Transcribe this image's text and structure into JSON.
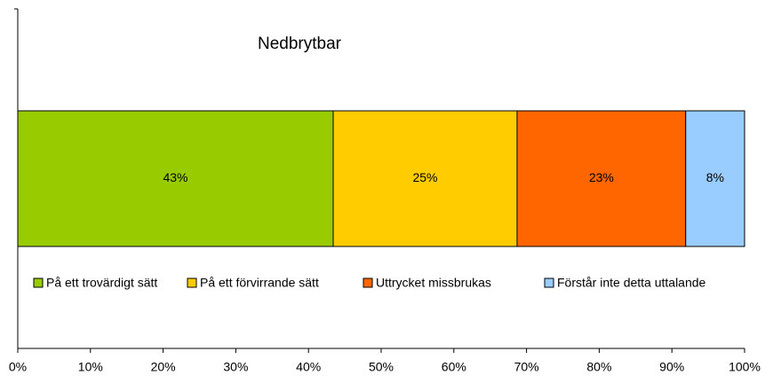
{
  "chart_data": {
    "type": "bar",
    "orientation": "horizontal",
    "stacked": true,
    "title": "Nedbrytbar",
    "series": [
      {
        "name": "På ett trovärdigt sätt",
        "color": "#99cc00",
        "values": [
          43.4
        ],
        "value_labels": [
          "43%"
        ]
      },
      {
        "name": "På ett förvirrande sätt",
        "color": "#ffcc00",
        "values": [
          25.3
        ],
        "value_labels": [
          "25%"
        ]
      },
      {
        "name": "Uttrycket missbrukas",
        "color": "#ff6600",
        "values": [
          23.2
        ],
        "value_labels": [
          "23%"
        ]
      },
      {
        "name": "Förstår inte detta uttalande",
        "color": "#99ccff",
        "values": [
          8.1
        ],
        "value_labels": [
          "8%"
        ]
      }
    ],
    "xlim": [
      0,
      100
    ],
    "xticks": [
      {
        "value": 0,
        "label": "0%"
      },
      {
        "value": 10,
        "label": "10%"
      },
      {
        "value": 20,
        "label": "20%"
      },
      {
        "value": 30,
        "label": "30%"
      },
      {
        "value": 40,
        "label": "40%"
      },
      {
        "value": 50,
        "label": "50%"
      },
      {
        "value": 60,
        "label": "60%"
      },
      {
        "value": 70,
        "label": "70%"
      },
      {
        "value": 80,
        "label": "80%"
      },
      {
        "value": 90,
        "label": "90%"
      },
      {
        "value": 100,
        "label": "100%"
      }
    ],
    "legend": "bottom"
  }
}
